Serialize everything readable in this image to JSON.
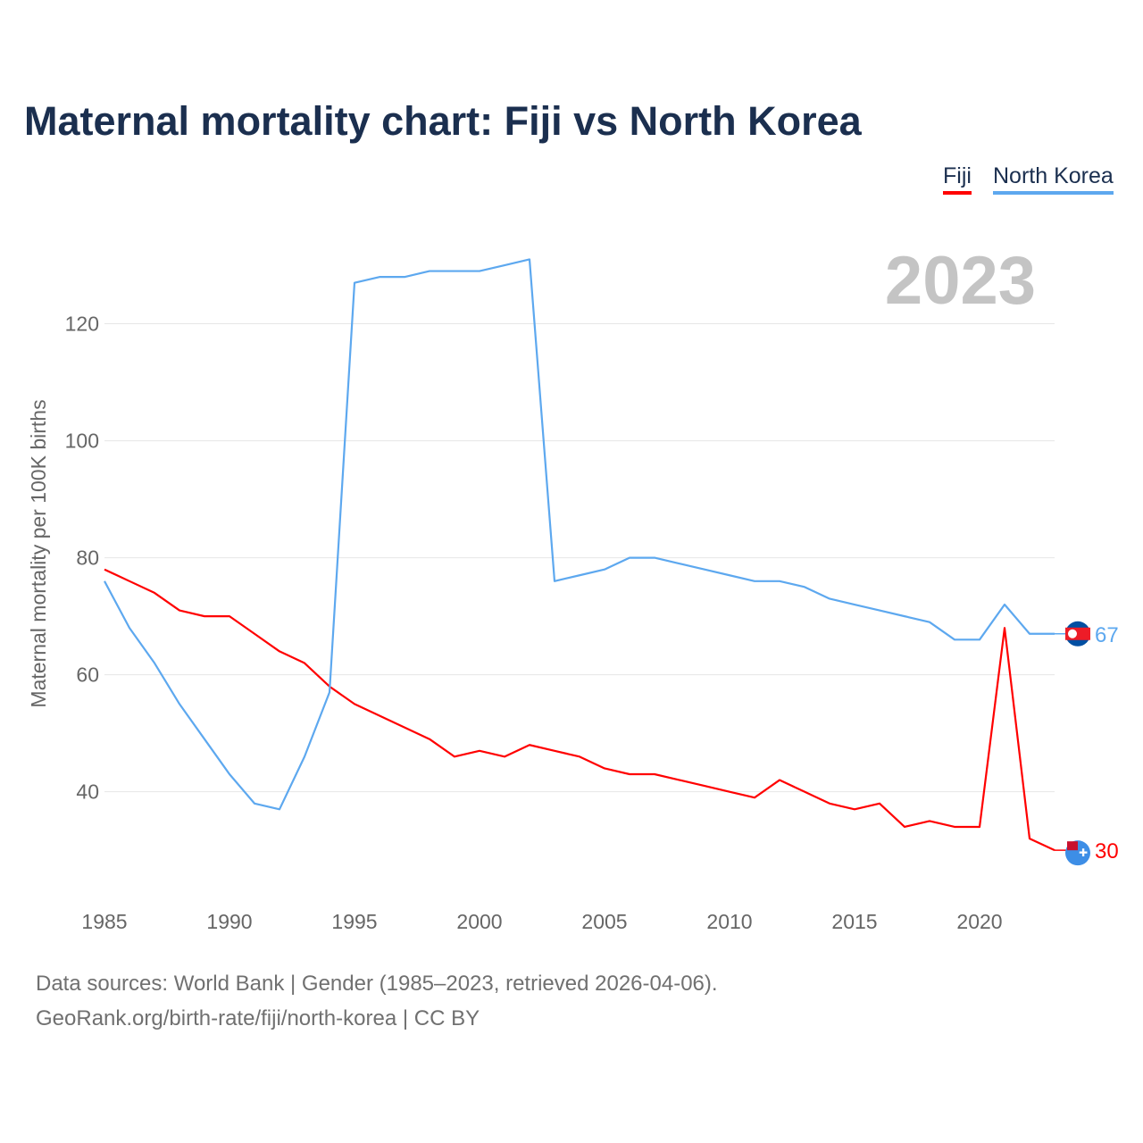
{
  "chart_data": {
    "type": "line",
    "title": "Maternal mortality chart: Fiji vs North Korea",
    "xlabel": "",
    "ylabel": "Maternal mortality per 100K births",
    "year_label": "2023",
    "xlim": [
      1985,
      2023
    ],
    "ylim": [
      22.7,
      132.6
    ],
    "yticks": [
      40,
      60,
      80,
      100,
      120
    ],
    "xticks": [
      1985,
      1990,
      1995,
      2000,
      2005,
      2010,
      2015,
      2020
    ],
    "grid": true,
    "legend_position": "top-right",
    "x": [
      1985,
      1986,
      1987,
      1988,
      1989,
      1990,
      1991,
      1992,
      1993,
      1994,
      1995,
      1996,
      1997,
      1998,
      1999,
      2000,
      2001,
      2002,
      2003,
      2004,
      2005,
      2006,
      2007,
      2008,
      2009,
      2010,
      2011,
      2012,
      2013,
      2014,
      2015,
      2016,
      2017,
      2018,
      2019,
      2020,
      2021,
      2022,
      2023
    ],
    "series": [
      {
        "name": "Fiji",
        "color": "#ff0000",
        "end_label": "30",
        "values": [
          78,
          76,
          74,
          71,
          70,
          70,
          67,
          64,
          62,
          58,
          55,
          53,
          51,
          49,
          46,
          47,
          46,
          48,
          47,
          46,
          44,
          43,
          43,
          42,
          41,
          40,
          39,
          42,
          40,
          38,
          37,
          38,
          34,
          35,
          34,
          34,
          68,
          32,
          30
        ]
      },
      {
        "name": "North Korea",
        "color": "#5da8ef",
        "end_label": "67",
        "values": [
          76,
          68,
          62,
          55,
          49,
          43,
          38,
          37,
          46,
          57,
          127,
          128,
          128,
          129,
          129,
          129,
          130,
          131,
          76,
          77,
          78,
          80,
          80,
          79,
          78,
          77,
          76,
          76,
          75,
          73,
          72,
          71,
          70,
          69,
          66,
          66,
          72,
          67,
          67
        ]
      }
    ]
  },
  "footer": {
    "line1": "Data sources: World Bank | Gender (1985–2023, retrieved 2026-04-06).",
    "line2": "GeoRank.org/birth-rate/fiji/north-korea | CC BY"
  }
}
